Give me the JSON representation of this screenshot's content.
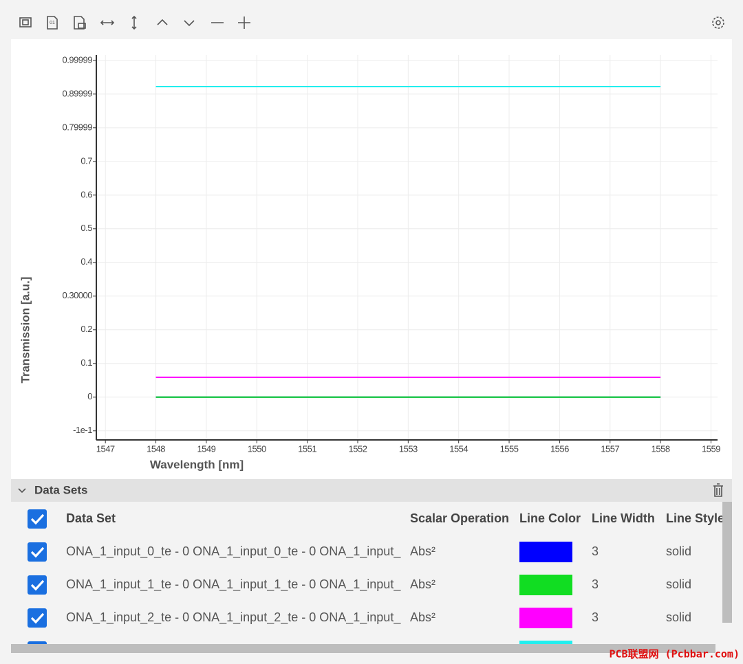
{
  "chart_data": {
    "type": "line",
    "x_label": "Wavelength [nm]",
    "y_label": "Transmission [a.u.]",
    "x": [
      1548,
      1558
    ],
    "series": [
      {
        "color": "#0000ff",
        "values": [
          0,
          0
        ]
      },
      {
        "color": "#11dd22",
        "values": [
          0,
          0
        ]
      },
      {
        "color": "#ff00ff",
        "values": [
          0.059,
          0.059
        ]
      },
      {
        "color": "#22eeee",
        "values": [
          0.922,
          0.922
        ]
      }
    ],
    "xlim": [
      1546.82,
      1559.13
    ],
    "xticks": [
      1547,
      1548,
      1549,
      1550,
      1551,
      1552,
      1553,
      1554,
      1555,
      1556,
      1557,
      1558,
      1559
    ],
    "ylim": [
      -0.127,
      1.016
    ],
    "yticks": [
      {
        "value": -0.1,
        "label": "-1e-1"
      },
      0,
      0.1,
      0.2,
      {
        "value": 0.3,
        "label": "0.30000"
      },
      0.4,
      0.5,
      0.6,
      0.7,
      0.79999,
      0.89999,
      0.99999
    ],
    "grid": true
  },
  "data_sets": {
    "title": "Data Sets",
    "headers": [
      "Data Set",
      "Scalar Operation",
      "Line Color",
      "Line Width",
      "Line Style"
    ],
    "rows": [
      {
        "name": "ONA_1_input_0_te - 0 ONA_1_input_0_te - 0 ONA_1_input_",
        "operation": "Abs²",
        "line_width": "3",
        "line_style": "solid"
      },
      {
        "name": "ONA_1_input_1_te - 0 ONA_1_input_1_te - 0 ONA_1_input_",
        "operation": "Abs²",
        "line_width": "3",
        "line_style": "solid"
      },
      {
        "name": "ONA_1_input_2_te - 0 ONA_1_input_2_te - 0 ONA_1_input_",
        "operation": "Abs²",
        "line_width": "3",
        "line_style": "solid"
      }
    ]
  },
  "watermark": "PCB联盟网 (Pcbbar.com)"
}
